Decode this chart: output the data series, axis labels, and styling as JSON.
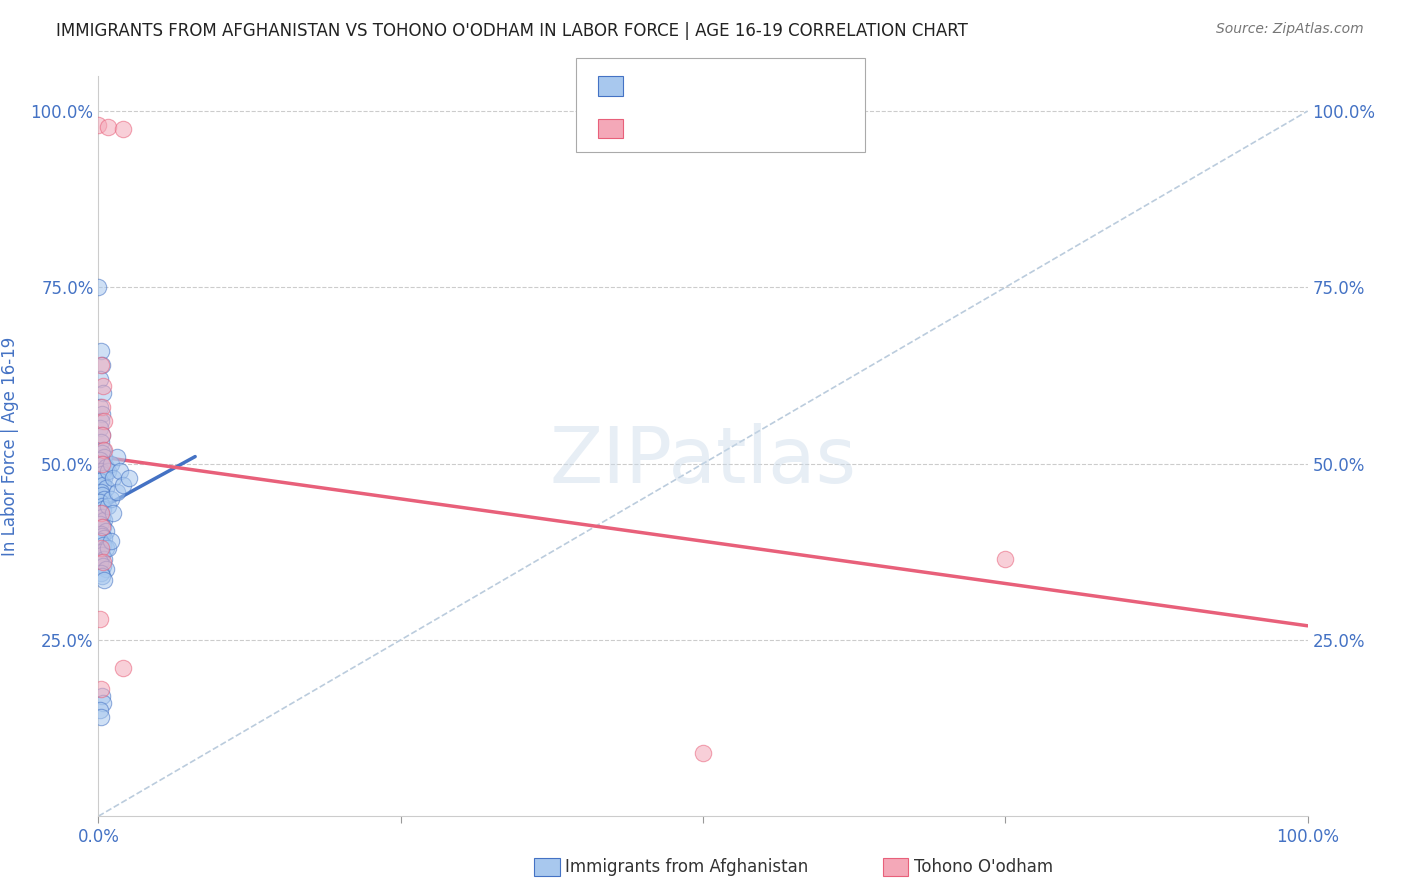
{
  "title": "IMMIGRANTS FROM AFGHANISTAN VS TOHONO O'ODHAM IN LABOR FORCE | AGE 16-19 CORRELATION CHART",
  "source": "Source: ZipAtlas.com",
  "legend_blue_label": "Immigrants from Afghanistan",
  "legend_pink_label": "Tohono O'odham",
  "blue_color": "#A8C8EE",
  "pink_color": "#F4A8B8",
  "trendline_blue": "#4472C4",
  "trendline_pink": "#E8607A",
  "diag_color": "#BBCCDD",
  "grid_color": "#CCCCCC",
  "title_color": "#222222",
  "axis_label_color": "#4472C4",
  "blue_scatter": [
    [
      0.0,
      0.75
    ],
    [
      0.002,
      0.66
    ],
    [
      0.003,
      0.64
    ],
    [
      0.001,
      0.62
    ],
    [
      0.004,
      0.6
    ],
    [
      0.001,
      0.58
    ],
    [
      0.003,
      0.57
    ],
    [
      0.002,
      0.56
    ],
    [
      0.001,
      0.55
    ],
    [
      0.003,
      0.54
    ],
    [
      0.002,
      0.53
    ],
    [
      0.004,
      0.52
    ],
    [
      0.003,
      0.515
    ],
    [
      0.005,
      0.51
    ],
    [
      0.001,
      0.505
    ],
    [
      0.004,
      0.5
    ],
    [
      0.006,
      0.495
    ],
    [
      0.002,
      0.49
    ],
    [
      0.003,
      0.485
    ],
    [
      0.005,
      0.48
    ],
    [
      0.001,
      0.475
    ],
    [
      0.004,
      0.47
    ],
    [
      0.006,
      0.465
    ],
    [
      0.002,
      0.46
    ],
    [
      0.003,
      0.455
    ],
    [
      0.005,
      0.45
    ],
    [
      0.001,
      0.445
    ],
    [
      0.003,
      0.44
    ],
    [
      0.004,
      0.435
    ],
    [
      0.002,
      0.43
    ],
    [
      0.003,
      0.425
    ],
    [
      0.005,
      0.42
    ],
    [
      0.001,
      0.415
    ],
    [
      0.004,
      0.41
    ],
    [
      0.006,
      0.405
    ],
    [
      0.002,
      0.4
    ],
    [
      0.003,
      0.398
    ],
    [
      0.005,
      0.395
    ],
    [
      0.001,
      0.39
    ],
    [
      0.004,
      0.385
    ],
    [
      0.006,
      0.38
    ],
    [
      0.002,
      0.375
    ],
    [
      0.003,
      0.37
    ],
    [
      0.005,
      0.365
    ],
    [
      0.001,
      0.36
    ],
    [
      0.004,
      0.355
    ],
    [
      0.006,
      0.35
    ],
    [
      0.002,
      0.345
    ],
    [
      0.003,
      0.34
    ],
    [
      0.005,
      0.335
    ],
    [
      0.008,
      0.49
    ],
    [
      0.01,
      0.5
    ],
    [
      0.012,
      0.48
    ],
    [
      0.015,
      0.51
    ],
    [
      0.018,
      0.49
    ],
    [
      0.008,
      0.44
    ],
    [
      0.01,
      0.45
    ],
    [
      0.012,
      0.43
    ],
    [
      0.015,
      0.46
    ],
    [
      0.02,
      0.47
    ],
    [
      0.025,
      0.48
    ],
    [
      0.008,
      0.38
    ],
    [
      0.01,
      0.39
    ],
    [
      0.003,
      0.17
    ],
    [
      0.004,
      0.16
    ],
    [
      0.001,
      0.15
    ],
    [
      0.002,
      0.14
    ]
  ],
  "pink_scatter": [
    [
      0.0,
      0.98
    ],
    [
      0.008,
      0.978
    ],
    [
      0.02,
      0.975
    ],
    [
      0.002,
      0.64
    ],
    [
      0.004,
      0.61
    ],
    [
      0.003,
      0.58
    ],
    [
      0.005,
      0.56
    ],
    [
      0.003,
      0.54
    ],
    [
      0.005,
      0.52
    ],
    [
      0.003,
      0.5
    ],
    [
      0.002,
      0.38
    ],
    [
      0.004,
      0.36
    ],
    [
      0.001,
      0.28
    ],
    [
      0.02,
      0.21
    ],
    [
      0.002,
      0.18
    ],
    [
      0.75,
      0.365
    ],
    [
      0.5,
      0.09
    ],
    [
      0.002,
      0.43
    ],
    [
      0.003,
      0.41
    ]
  ],
  "xlim": [
    0.0,
    1.0
  ],
  "ylim": [
    0.0,
    1.05
  ],
  "blue_trend_x": [
    0.0,
    0.08
  ],
  "blue_trend_y": [
    0.435,
    0.51
  ],
  "pink_trend_x": [
    0.0,
    1.0
  ],
  "pink_trend_y": [
    0.51,
    0.27
  ]
}
